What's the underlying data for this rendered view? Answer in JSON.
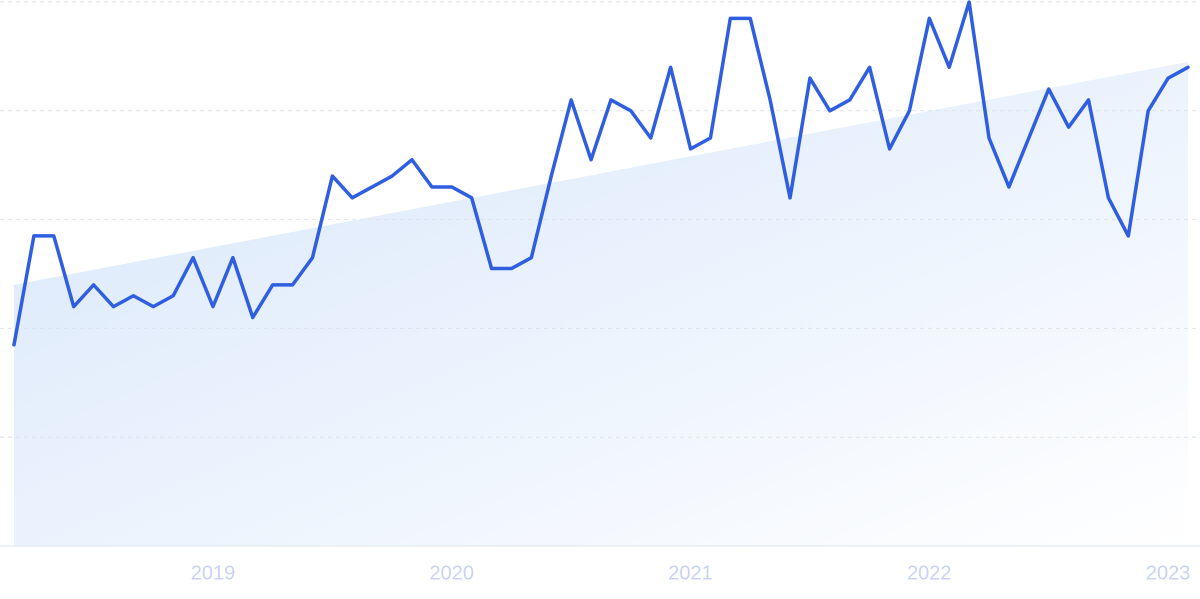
{
  "chart_data": {
    "type": "line",
    "categories": [
      null,
      null,
      null,
      null,
      null,
      null,
      null,
      null,
      null,
      null,
      "2019",
      null,
      null,
      null,
      null,
      null,
      null,
      null,
      null,
      null,
      null,
      null,
      "2020",
      null,
      null,
      null,
      null,
      null,
      null,
      null,
      null,
      null,
      null,
      null,
      "2021",
      null,
      null,
      null,
      null,
      null,
      null,
      null,
      null,
      null,
      null,
      null,
      "2022",
      null,
      null,
      null,
      null,
      null,
      null,
      null,
      null,
      null,
      null,
      null,
      "2023",
      null
    ],
    "series": [
      {
        "color": "#2f5fe0",
        "values": [
          37,
          57,
          57,
          44,
          48,
          44,
          46,
          44,
          46,
          53,
          44,
          53,
          42,
          48,
          48,
          53,
          68,
          64,
          66,
          68,
          71,
          66,
          66,
          64,
          51,
          51,
          53,
          68,
          82,
          71,
          82,
          80,
          75,
          88,
          73,
          75,
          97,
          97,
          82,
          64,
          86,
          80,
          82,
          88,
          73,
          80,
          97,
          88,
          100,
          75,
          66,
          75,
          84,
          77,
          82,
          64,
          57,
          80,
          86,
          88
        ]
      }
    ],
    "trend": [
      48,
      89
    ],
    "ylim": [
      0,
      100
    ],
    "yticks": [
      0,
      20,
      40,
      60,
      80,
      100
    ],
    "grid": true
  }
}
